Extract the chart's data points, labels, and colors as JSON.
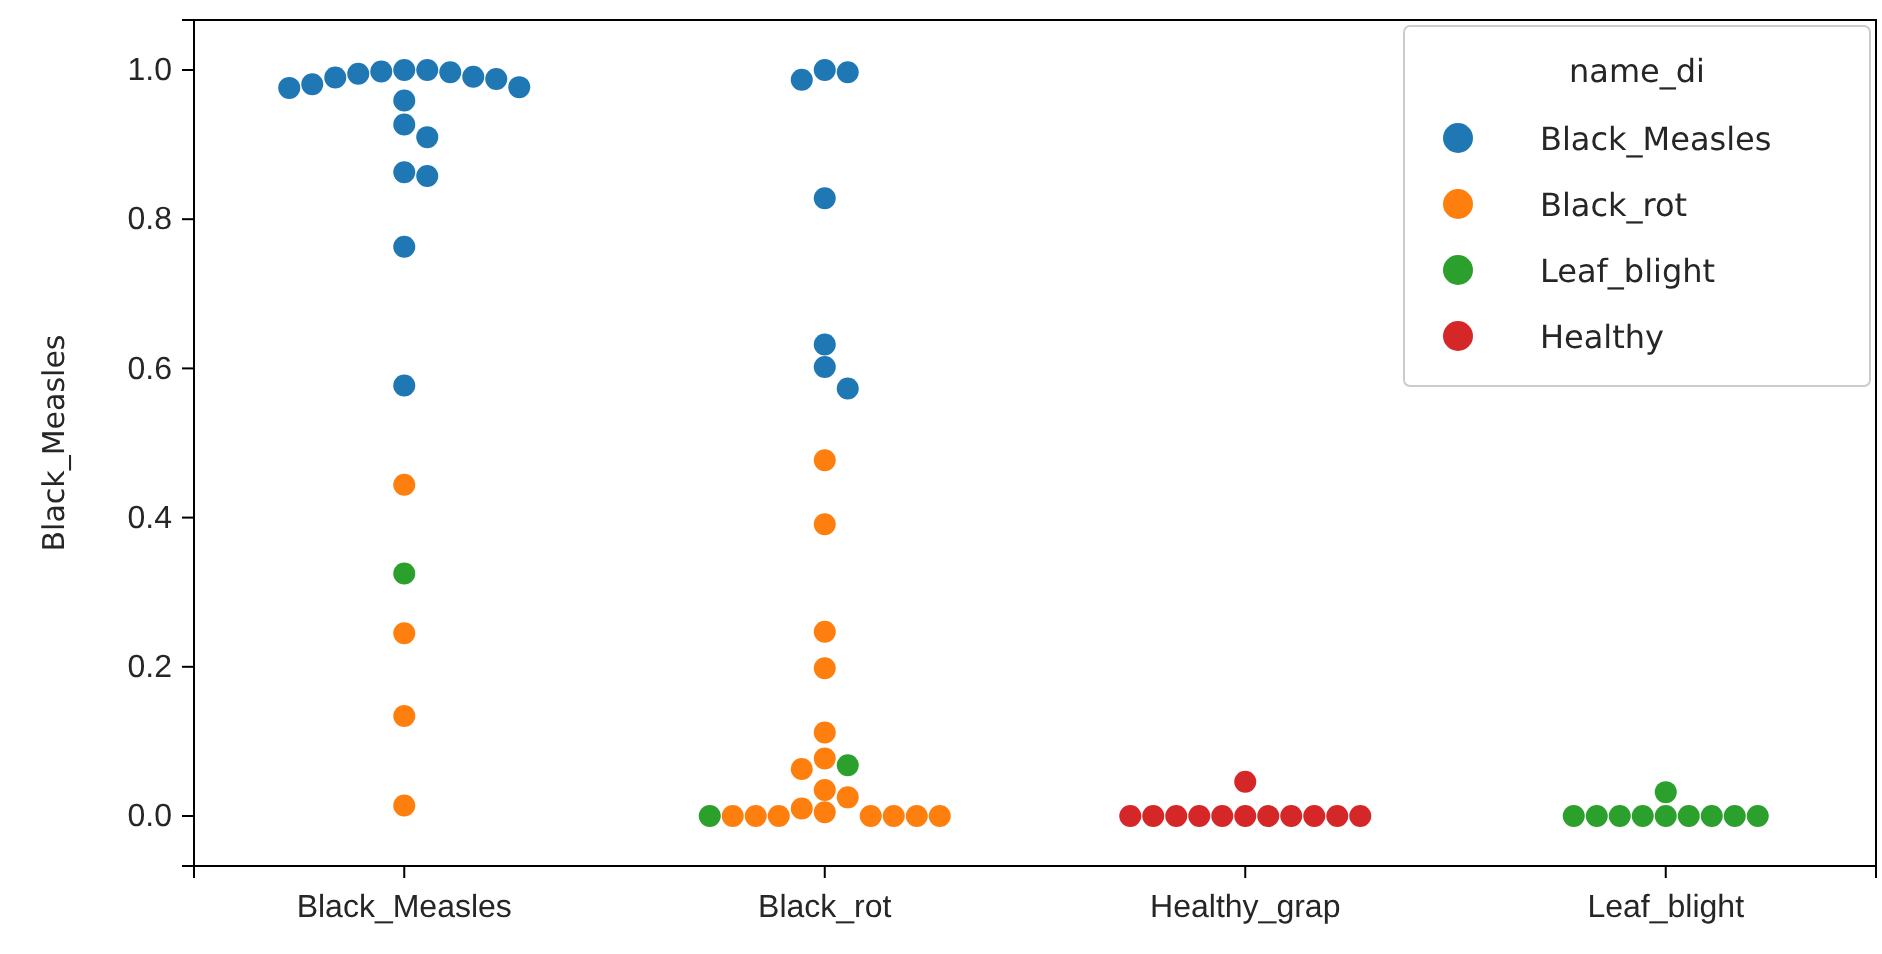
{
  "chart_data": {
    "type": "scatter",
    "ylabel": "Black_Measles",
    "legend_title": "name_di",
    "legend": "top right",
    "marker": "circle",
    "grid": false,
    "categories": [
      "Black_Measles",
      "Black_rot",
      "Healthy_grap",
      "Leaf_blight"
    ],
    "ylim": [
      -0.067,
      1.067
    ],
    "yticks": [
      {
        "value": 0,
        "label": "0.0"
      },
      0.2,
      0.4,
      0.6,
      0.8,
      {
        "value": 1,
        "label": "1.0"
      }
    ],
    "series": [
      {
        "name": "Black_Measles",
        "color": "#1f77b4",
        "x": [
          "Black_Measles",
          "Black_Measles",
          "Black_Measles",
          "Black_Measles",
          "Black_Measles",
          "Black_Measles",
          "Black_Measles",
          "Black_Measles",
          "Black_Measles",
          "Black_Measles",
          "Black_Measles",
          "Black_Measles",
          "Black_Measles",
          "Black_Measles",
          "Black_Measles",
          "Black_Measles",
          "Black_Measles",
          "Black_Measles",
          "Black_rot",
          "Black_rot",
          "Black_rot",
          "Black_rot",
          "Black_rot",
          "Black_rot",
          "Black_rot"
        ],
        "values": [
          1.0,
          0.998,
          0.995,
          0.99,
          0.988,
          0.976,
          0.959,
          0.977,
          0.981,
          0.991,
          0.997,
          1.0,
          0.927,
          0.91,
          0.863,
          0.858,
          0.763,
          0.577,
          0.997,
          0.987,
          1.0,
          0.828,
          0.632,
          0.602,
          0.573
        ]
      },
      {
        "name": "Black_rot",
        "color": "#ff7f0e",
        "x": [
          "Black_Measles",
          "Black_Measles",
          "Black_Measles",
          "Black_Measles",
          "Black_rot",
          "Black_rot",
          "Black_rot",
          "Black_rot",
          "Black_rot",
          "Black_rot",
          "Black_rot",
          "Black_rot",
          "Black_rot",
          "Black_rot",
          "Black_rot",
          "Black_rot",
          "Black_rot",
          "Black_rot",
          "Black_rot",
          "Black_rot",
          "Black_rot",
          "Black_rot"
        ],
        "values": [
          0.444,
          0.245,
          0.134,
          0.014,
          0.477,
          0.391,
          0.247,
          0.198,
          0.112,
          0.063,
          0.077,
          0.025,
          0.005,
          0.0,
          0.0,
          0.0,
          0.0,
          0.0,
          0.0,
          0.035,
          0.01,
          0.0
        ]
      },
      {
        "name": "Leaf_blight",
        "color": "#2ca02c",
        "x": [
          "Black_Measles",
          "Black_rot",
          "Black_rot",
          "Leaf_blight",
          "Leaf_blight",
          "Leaf_blight",
          "Leaf_blight",
          "Leaf_blight",
          "Leaf_blight",
          "Leaf_blight",
          "Leaf_blight",
          "Leaf_blight",
          "Leaf_blight"
        ],
        "values": [
          0.325,
          0.068,
          0.0,
          0.032,
          0.0,
          0.0,
          0.0,
          0.0,
          0.0,
          0.0,
          0.0,
          0.0,
          0.0
        ]
      },
      {
        "name": "Healthy",
        "color": "#d62728",
        "x": [
          "Healthy_grap",
          "Healthy_grap",
          "Healthy_grap",
          "Healthy_grap",
          "Healthy_grap",
          "Healthy_grap",
          "Healthy_grap",
          "Healthy_grap",
          "Healthy_grap",
          "Healthy_grap",
          "Healthy_grap",
          "Healthy_grap"
        ],
        "values": [
          0.046,
          0.0,
          0.0,
          0.0,
          0.0,
          0.0,
          0.0,
          0.0,
          0.0,
          0.0,
          0.0,
          0.0
        ]
      }
    ]
  }
}
